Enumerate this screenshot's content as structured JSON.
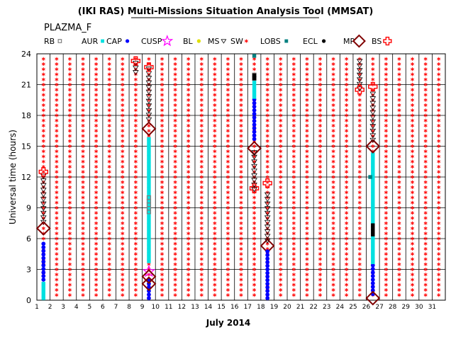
{
  "chart_data": {
    "type": "scatter",
    "title": "(IKI RAS) Multi-Missions Situation Analysis Tool (MMSAT)",
    "subtitle": "PLAZMA_F",
    "xlabel": "July 2014",
    "ylabel": "Universal time (hours)",
    "xlim": [
      1,
      32
    ],
    "ylim": [
      0,
      24
    ],
    "xticks": [
      "1",
      "2",
      "3",
      "4",
      "5",
      "6",
      "7",
      "8",
      "9",
      "10",
      "11",
      "12",
      "13",
      "14",
      "15",
      "16",
      "17",
      "18",
      "19",
      "20",
      "21",
      "22",
      "23",
      "24",
      "25",
      "26",
      "27",
      "28",
      "29",
      "30",
      "31"
    ],
    "yticks": [
      "0",
      "3",
      "6",
      "9",
      "12",
      "15",
      "18",
      "21",
      "24"
    ],
    "grid": true,
    "legend_position": "top",
    "legend": [
      {
        "label": "RB",
        "color": "#808080",
        "marker": "open-square"
      },
      {
        "label": "AUR",
        "color": "#00e0e0",
        "marker": "square"
      },
      {
        "label": "CAP",
        "color": "#0000ff",
        "marker": "circle"
      },
      {
        "label": "CUSP",
        "color": "#ff00ff",
        "marker": "open-star"
      },
      {
        "label": "BL",
        "color": "#e0e000",
        "marker": "circle"
      },
      {
        "label": "MS",
        "color": "#000000",
        "marker": "open-triangle-down"
      },
      {
        "label": "SW",
        "color": "#ff0000",
        "marker": "asterisk"
      },
      {
        "label": "LOBS",
        "color": "#008080",
        "marker": "square"
      },
      {
        "label": "ECL",
        "color": "#000000",
        "marker": "circle"
      },
      {
        "label": "MP",
        "color": "#800000",
        "marker": "open-diamond"
      },
      {
        "label": "BS",
        "color": "#ff0000",
        "marker": "open-cross"
      }
    ],
    "sw_background": {
      "x_start": 1.5,
      "x_end": 31.5,
      "x_step": 1,
      "y_start": 0.5,
      "y_end": 23.5,
      "y_step": 0.5
    },
    "series": [
      {
        "marker": "circle",
        "color": "#0000ff",
        "x": 1.5,
        "y_from": 2,
        "y_to": 5.8,
        "step": 0.35
      },
      {
        "marker": "square",
        "color": "#00e0e0",
        "x": 1.5,
        "y_from": 0.2,
        "y_to": 1.8,
        "step": 0.35
      },
      {
        "marker": "open-triangle-down",
        "color": "#000000",
        "x": 1.5,
        "y_from": 7.6,
        "y_to": 12.2,
        "step": 0.45
      },
      {
        "marker": "open-diamond",
        "color": "#800000",
        "points": [
          [
            1.5,
            7.0
          ]
        ]
      },
      {
        "marker": "open-cross",
        "color": "#ff0000",
        "points": [
          [
            1.5,
            12.5
          ]
        ]
      },
      {
        "marker": "circle",
        "color": "#0000ff",
        "x": 9.5,
        "y_from": 0.2,
        "y_to": 2.2,
        "step": 0.35
      },
      {
        "marker": "square",
        "color": "#00e0e0",
        "x": 9.5,
        "y_from": 3.8,
        "y_to": 15.8,
        "step": 0.35
      },
      {
        "marker": "open-square",
        "color": "#808080",
        "x": 9.5,
        "y_from": 8.6,
        "y_to": 10.0,
        "step": 0.35
      },
      {
        "marker": "open-triangle-down",
        "color": "#000000",
        "x": 9.5,
        "y_from": 17.6,
        "y_to": 22.6,
        "step": 0.45
      },
      {
        "marker": "open-triangle-down",
        "color": "#000000",
        "x": 8.5,
        "y_from": 22.2,
        "y_to": 23.4,
        "step": 0.45
      },
      {
        "marker": "open-star",
        "color": "#ff00ff",
        "points": [
          [
            9.5,
            2.8
          ]
        ]
      },
      {
        "marker": "open-diamond",
        "color": "#800000",
        "points": [
          [
            9.5,
            1.6
          ],
          [
            9.5,
            2.3
          ],
          [
            9.5,
            16.7
          ]
        ]
      },
      {
        "marker": "open-cross",
        "color": "#ff0000",
        "points": [
          [
            8.5,
            23.3
          ],
          [
            9.5,
            22.7
          ]
        ]
      },
      {
        "marker": "circle",
        "color": "#0000ff",
        "x": 17.5,
        "y_from": 15.7,
        "y_to": 19.6,
        "step": 0.35
      },
      {
        "marker": "square",
        "color": "#00e0e0",
        "x": 17.5,
        "y_from": 19.8,
        "y_to": 21.4,
        "step": 0.35
      },
      {
        "marker": "open-square",
        "color": "#808080",
        "x": 17.5,
        "y_from": 21.6,
        "y_to": 22.2,
        "step": 0.35
      },
      {
        "marker": "square",
        "color": "#000000",
        "points": [
          [
            17.5,
            21.6
          ],
          [
            17.5,
            21.9
          ]
        ]
      },
      {
        "marker": "square",
        "color": "#008080",
        "points": [
          [
            17.5,
            23.8
          ]
        ]
      },
      {
        "marker": "open-diamond",
        "color": "#800000",
        "points": [
          [
            17.5,
            14.8
          ],
          [
            18.5,
            5.3
          ]
        ]
      },
      {
        "marker": "open-triangle-down",
        "color": "#000000",
        "x": 17.5,
        "y_from": 10.8,
        "y_to": 14.4,
        "step": 0.45
      },
      {
        "marker": "open-triangle-down",
        "color": "#000000",
        "x": 18.5,
        "y_from": 5.8,
        "y_to": 10.6,
        "step": 0.45
      },
      {
        "marker": "open-cross",
        "color": "#ff0000",
        "points": [
          [
            17.5,
            10.9
          ],
          [
            18.5,
            11.4
          ]
        ]
      },
      {
        "marker": "circle",
        "color": "#0000ff",
        "x": 18.5,
        "y_from": 0.2,
        "y_to": 4.8,
        "step": 0.35
      },
      {
        "marker": "circle",
        "color": "#0000ff",
        "x": 26.5,
        "y_from": 0.6,
        "y_to": 3.5,
        "step": 0.35
      },
      {
        "marker": "square",
        "color": "#00e0e0",
        "x": 26.5,
        "y_from": 3.7,
        "y_to": 14.5,
        "step": 0.35
      },
      {
        "marker": "square",
        "color": "#000000",
        "points": [
          [
            26.5,
            6.4
          ],
          [
            26.5,
            6.7
          ],
          [
            26.5,
            7.0
          ],
          [
            26.5,
            7.3
          ]
        ]
      },
      {
        "marker": "square",
        "color": "#008080",
        "points": [
          [
            26.3,
            12.0
          ]
        ]
      },
      {
        "marker": "open-diamond",
        "color": "#800000",
        "points": [
          [
            26.5,
            15.0
          ],
          [
            26.5,
            0.2
          ]
        ]
      },
      {
        "marker": "open-triangle-down",
        "color": "#000000",
        "x": 25.5,
        "y_from": 20.6,
        "y_to": 23.5,
        "step": 0.45
      },
      {
        "marker": "open-triangle-down",
        "color": "#000000",
        "x": 26.5,
        "y_from": 15.6,
        "y_to": 20.4,
        "step": 0.45
      },
      {
        "marker": "open-cross",
        "color": "#ff0000",
        "points": [
          [
            25.5,
            20.5
          ],
          [
            26.5,
            20.8
          ]
        ]
      }
    ]
  }
}
